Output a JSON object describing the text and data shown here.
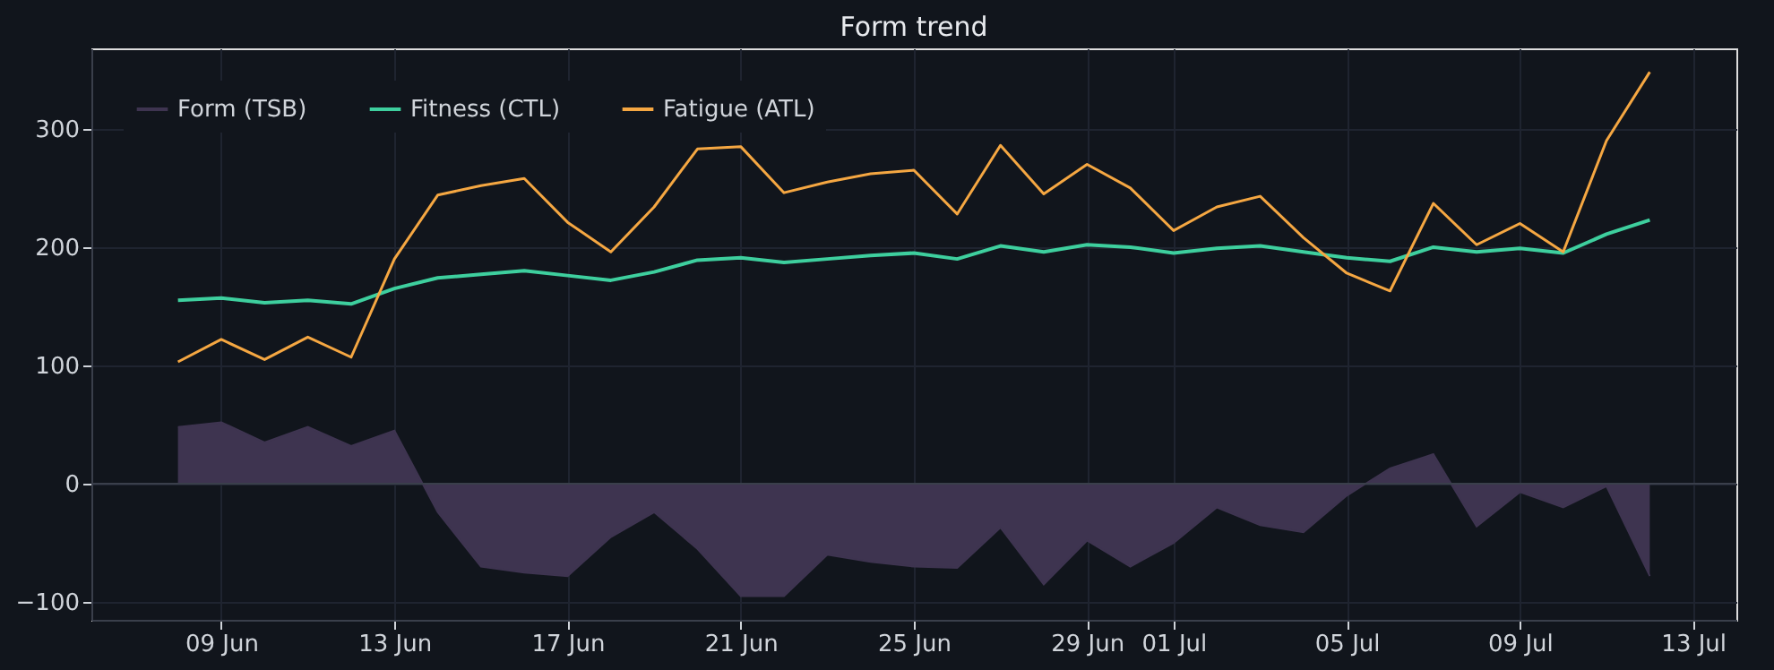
{
  "chart_data": {
    "type": "line",
    "title": "Form trend",
    "x": [
      "--06-08",
      "--06-09",
      "--06-10",
      "--06-11",
      "--06-12",
      "--06-13",
      "--06-14",
      "--06-15",
      "--06-16",
      "--06-17",
      "--06-18",
      "--06-19",
      "--06-20",
      "--06-21",
      "--06-22",
      "--06-23",
      "--06-24",
      "--06-25",
      "--06-26",
      "--06-27",
      "--06-28",
      "--06-29",
      "--06-30",
      "--07-01",
      "--07-02",
      "--07-03",
      "--07-04",
      "--07-05",
      "--07-06",
      "--07-07",
      "--07-08",
      "--07-09",
      "--07-10",
      "--07-11",
      "--07-12"
    ],
    "series": [
      {
        "name": "Form (TSB)",
        "type": "area",
        "color": "#3e3450",
        "values": [
          48,
          52,
          35,
          48,
          32,
          45,
          -24,
          -70,
          -75,
          -78,
          -45,
          -24,
          -55,
          -95,
          -95,
          -60,
          -66,
          -70,
          -71,
          -37,
          -85,
          -48,
          -70,
          -50,
          -20,
          -35,
          -41,
          -10,
          13,
          25,
          -36,
          -7,
          -20,
          -2,
          -78
        ]
      },
      {
        "name": "Fitness (CTL)",
        "color": "#3ecf9e",
        "values": [
          155,
          157,
          153,
          155,
          152,
          165,
          174,
          177,
          180,
          176,
          172,
          179,
          189,
          191,
          187,
          190,
          193,
          195,
          190,
          201,
          196,
          202,
          200,
          195,
          199,
          201,
          196,
          191,
          188,
          200,
          196,
          199,
          195,
          211,
          223
        ]
      },
      {
        "name": "Fatigue (ATL)",
        "color": "#f5a742",
        "values": [
          103,
          122,
          105,
          124,
          107,
          190,
          244,
          252,
          258,
          221,
          196,
          234,
          283,
          285,
          246,
          255,
          262,
          265,
          228,
          286,
          245,
          270,
          250,
          214,
          234,
          243,
          208,
          178,
          163,
          237,
          202,
          220,
          196,
          290,
          348
        ]
      }
    ],
    "xlim": [
      "--06-06",
      "--07-14"
    ],
    "xticks": [
      {
        "value": "--06-09",
        "label": "09 Jun"
      },
      {
        "value": "--06-13",
        "label": "13 Jun"
      },
      {
        "value": "--06-17",
        "label": "17 Jun"
      },
      {
        "value": "--06-21",
        "label": "21 Jun"
      },
      {
        "value": "--06-25",
        "label": "25 Jun"
      },
      {
        "value": "--06-29",
        "label": "29 Jun"
      },
      {
        "value": "--07-01",
        "label": "01 Jul"
      },
      {
        "value": "--07-05",
        "label": "05 Jul"
      },
      {
        "value": "--07-09",
        "label": "09 Jul"
      },
      {
        "value": "--07-13",
        "label": "13 Jul"
      }
    ],
    "ylim": [
      -115,
      368
    ],
    "yticks": [
      -100,
      0,
      100,
      200,
      300
    ],
    "ref_lines": [
      {
        "axis": "y",
        "value": 0,
        "color": "#3a3f4b"
      }
    ],
    "grid": true,
    "legend": "top left"
  }
}
